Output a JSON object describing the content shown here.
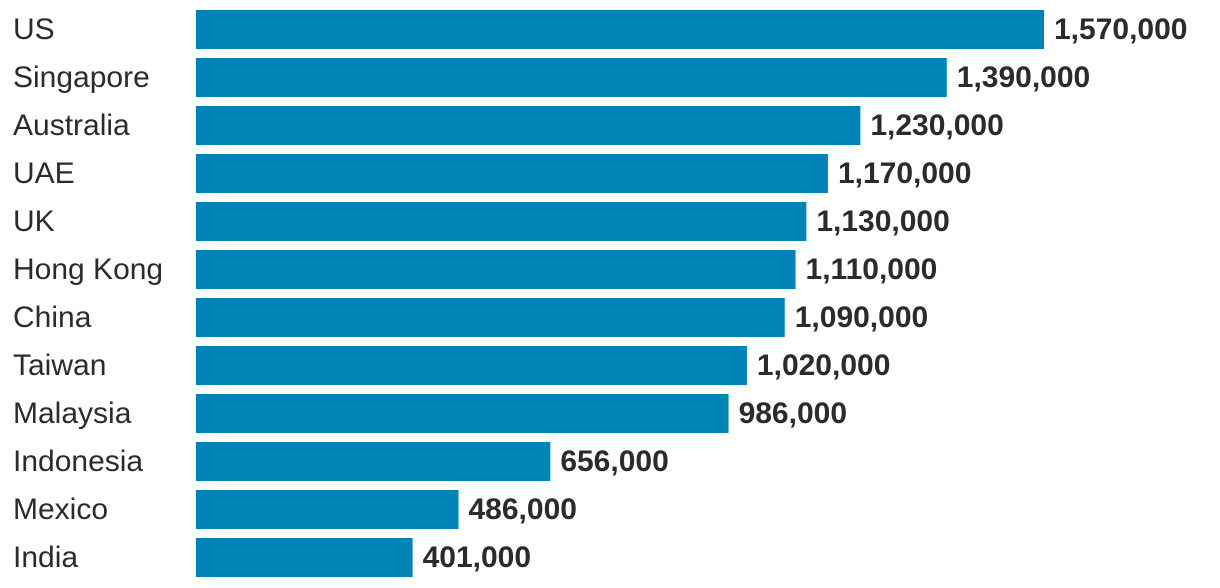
{
  "colors": {
    "bar": "#0083b5",
    "text": "#2b2b2b",
    "background": "#ffffff"
  },
  "chart_data": {
    "type": "bar",
    "orientation": "horizontal",
    "title": "",
    "xlabel": "",
    "ylabel": "",
    "grid": false,
    "legend": "none",
    "categories": [
      "US",
      "Singapore",
      "Australia",
      "UAE",
      "UK",
      "Hong Kong",
      "China",
      "Taiwan",
      "Malaysia",
      "Indonesia",
      "Mexico",
      "India"
    ],
    "values": [
      1570000,
      1390000,
      1230000,
      1170000,
      1130000,
      1110000,
      1090000,
      1020000,
      986000,
      656000,
      486000,
      401000
    ],
    "value_labels": [
      "1,570,000",
      "1,390,000",
      "1,230,000",
      "1,170,000",
      "1,130,000",
      "1,110,000",
      "1,090,000",
      "1,020,000",
      "986,000",
      "656,000",
      "486,000",
      "401,000"
    ],
    "xlim": [
      0,
      1570000
    ]
  }
}
